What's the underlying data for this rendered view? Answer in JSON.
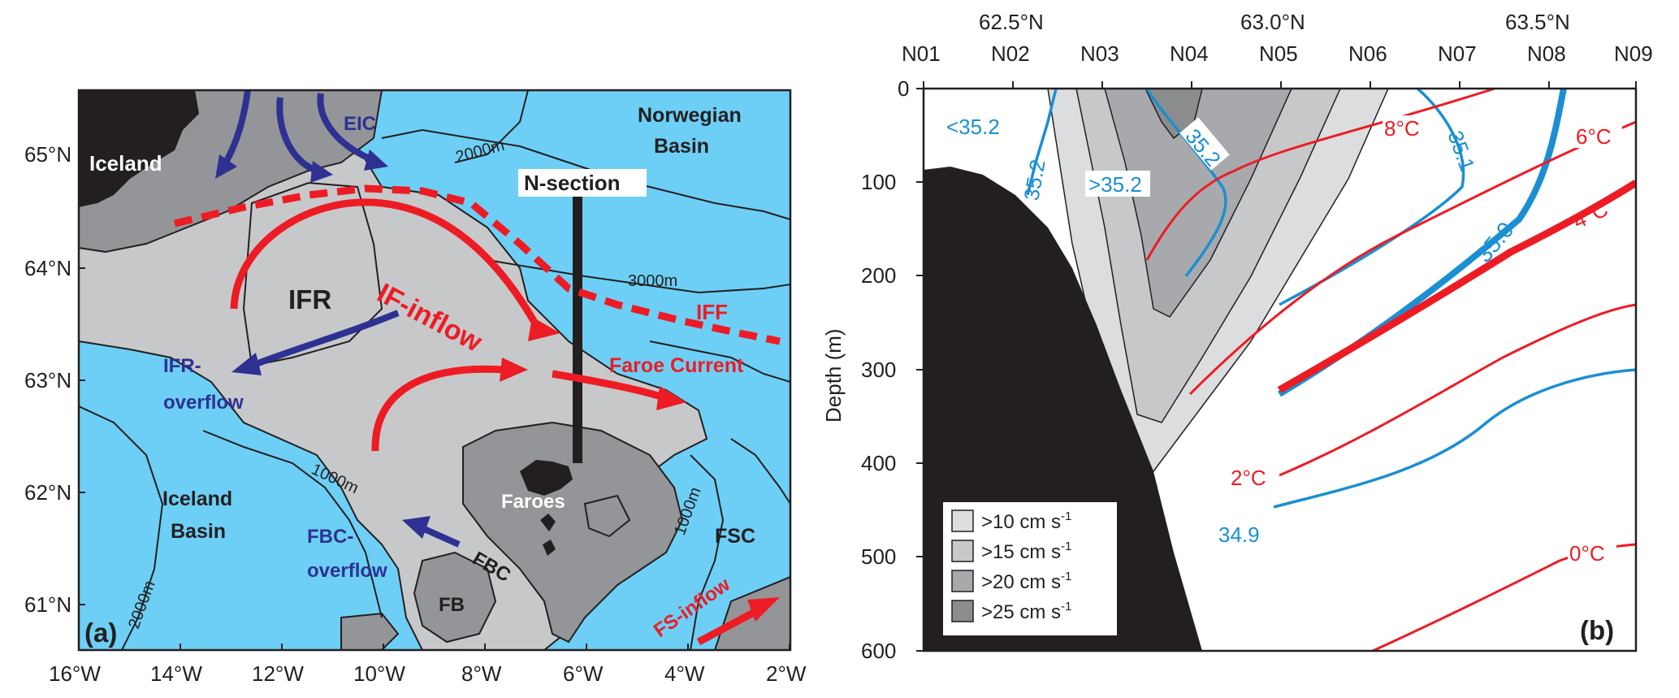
{
  "panel_a": {
    "label": "(a)",
    "lat_ticks": [
      "65°N",
      "64°N",
      "63°N",
      "62°N",
      "61°N"
    ],
    "lon_ticks": [
      "16°W",
      "14°W",
      "12°W",
      "10°W",
      "8°W",
      "6°W",
      "4°W",
      "2°W"
    ],
    "places": {
      "iceland": "Iceland",
      "norwegian_basin_1": "Norwegian",
      "norwegian_basin_2": "Basin",
      "ifr": "IFR",
      "faroes": "Faroes",
      "iceland_basin_1": "Iceland",
      "iceland_basin_2": "Basin",
      "fb": "FB",
      "fsc": "FSC",
      "fbc": "FBC",
      "n_section": "N-section"
    },
    "depth_labels": {
      "d2000_a": "2000m",
      "d3000": "3000m",
      "d1000_a": "1000m",
      "d1000_b": "1000m",
      "d2000_b": "2000m"
    },
    "currents": {
      "eic": "EIC",
      "ifr_overflow_1": "IFR-",
      "ifr_overflow_2": "overflow",
      "fbc_overflow_1": "FBC-",
      "fbc_overflow_2": "overflow",
      "if_inflow": "IF-inflow",
      "iff": "IFF",
      "faroe_current": "Faroe Current",
      "fs_inflow": "FS-inflow"
    },
    "colors": {
      "ocean": "#6dcff6",
      "shelf": "#c7c8ca",
      "bank": "#939598",
      "land": "#231f20",
      "red": "#ed1c24",
      "blue": "#2e3192"
    }
  },
  "panel_b": {
    "label": "(b)",
    "ylabel": "Depth (m)",
    "stations": [
      "N01",
      "N02",
      "N03",
      "N04",
      "N05",
      "N06",
      "N07",
      "N08",
      "N09"
    ],
    "lat_ticks": [
      "62.5°N",
      "63.0°N",
      "63.5°N"
    ],
    "depth_ticks": [
      "0",
      "100",
      "200",
      "300",
      "400",
      "500",
      "600"
    ],
    "salinity_labels": {
      "s352_left": "<35.2",
      "s352_a": "35.2",
      "s352_mid": ">35.2",
      "s352_b": "35.2",
      "s351": "35.1",
      "s350": "35.0",
      "s349": "34.9"
    },
    "temperature_labels": {
      "t8": "8°C",
      "t6": "6°C",
      "t4": "4°C",
      "t2": "2°C",
      "t0": "0°C"
    },
    "legend": [
      {
        "text": ">10 cm s",
        "sup": "-1",
        "color": "#dcddde"
      },
      {
        "text": ">15 cm s",
        "sup": "-1",
        "color": "#c7c8ca"
      },
      {
        "text": ">20 cm s",
        "sup": "-1",
        "color": "#a7a9ac"
      },
      {
        "text": ">25 cm s",
        "sup": "-1",
        "color": "#8a8c8e"
      }
    ],
    "colors": {
      "salinity": "#1b8fd2",
      "temperature": "#ed1c24",
      "bottom": "#231f20"
    }
  }
}
